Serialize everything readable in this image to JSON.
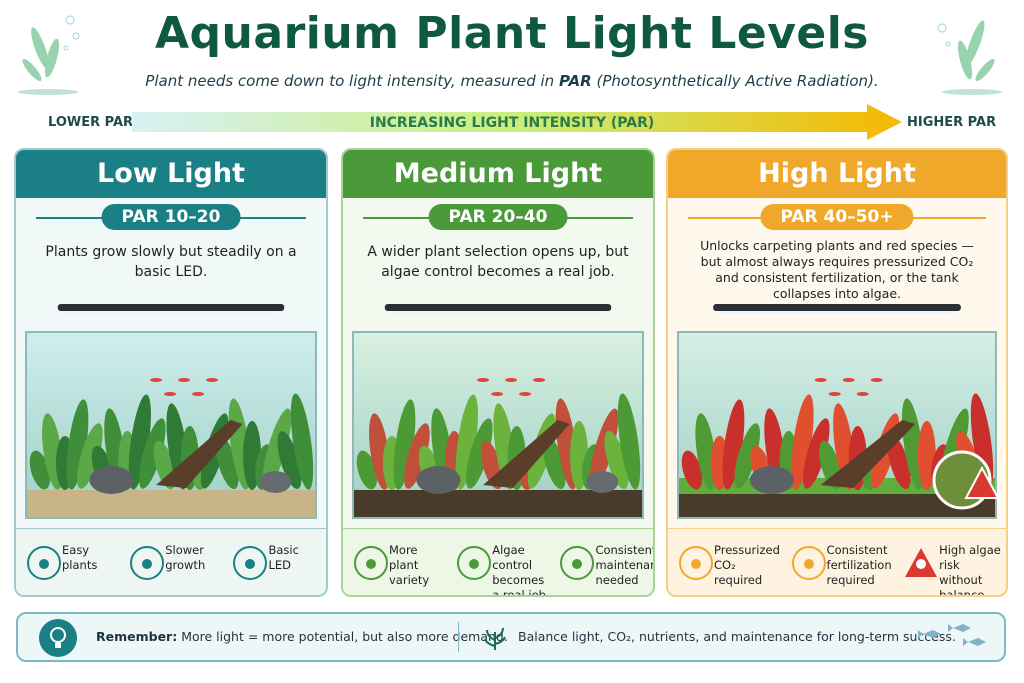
{
  "header": {
    "title": "Aquarium Plant Light Levels",
    "subtitle": {
      "before": "Plant needs come down to light intensity, measured in ",
      "bold": "PAR",
      "after": " (Photosynthetically Active Radiation)."
    }
  },
  "scale": {
    "left": "LOWER PAR",
    "center": "INCREASING LIGHT INTENSITY (PAR)",
    "right": "HIGHER PAR"
  },
  "panels": [
    {
      "title": "Low Light",
      "par": "PAR 10–20",
      "description": "Plants grow slowly but steadily on a basic LED.",
      "features": [
        "Easy plants",
        "Slower growth",
        "Basic LED"
      ]
    },
    {
      "title": "Medium Light",
      "par": "PAR 20–40",
      "description": "A wider plant selection opens up, but algae control becomes a real job.",
      "features": [
        "More plant variety",
        "Algae control becomes a real job",
        "Consistent maintenance needed"
      ]
    },
    {
      "title": "High Light",
      "par": "PAR 40–50+",
      "description": "Unlocks carpeting plants and red species — but almost always requires pressurized CO₂ and consistent fertilization, or the tank collapses into algae.",
      "features": [
        "Pressurized CO₂ required",
        "Consistent fertilization required",
        "High algae risk without balance"
      ]
    }
  ],
  "footer": {
    "bold": "Remember:",
    "text": " More light = more potential, but also more demand.",
    "tip": "Balance light, CO₂, nutrients, and maintenance for long-term success."
  }
}
